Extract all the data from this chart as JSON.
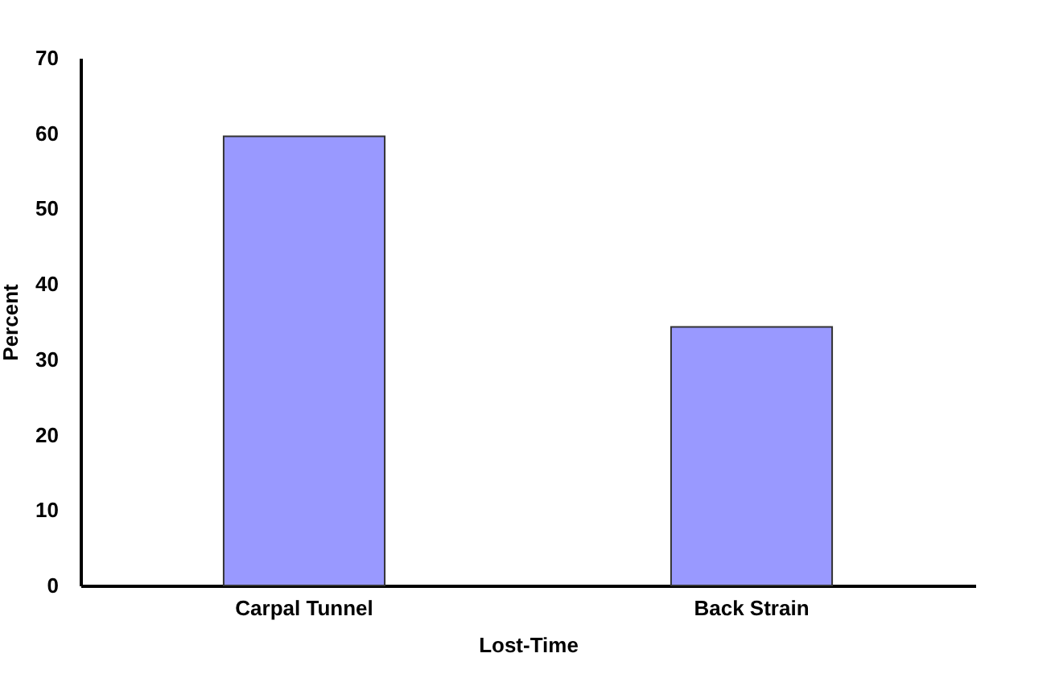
{
  "chart_data": {
    "type": "bar",
    "xlabel": "Lost-Time",
    "ylabel": "Percent",
    "categories": [
      "Carpal Tunnel",
      "Back Strain"
    ],
    "values": [
      59.6,
      34.3
    ],
    "color": "#9999ff",
    "ylim": [
      0,
      70
    ],
    "yticks": [
      0,
      10,
      20,
      30,
      40,
      50,
      60,
      70
    ],
    "grid": false
  }
}
